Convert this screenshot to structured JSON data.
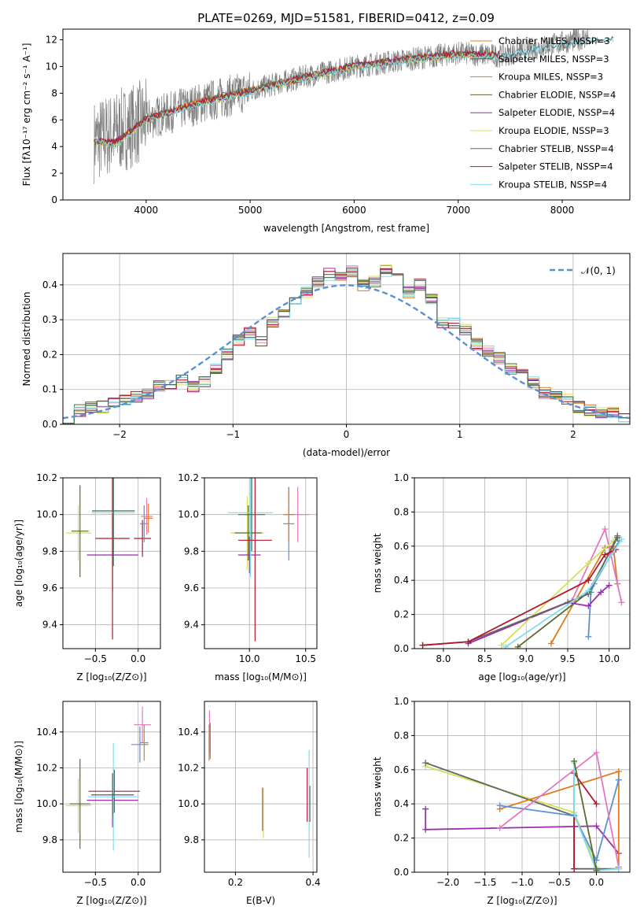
{
  "figure": {
    "title": "PLATE=0269, MJD=51581, FIBERID=0412, z=0.09"
  },
  "colors": {
    "c1": "#446a58",
    "c2": "#e377c2",
    "c3": "#e07b1a",
    "c4": "#556b2f",
    "c5": "#9a2db0",
    "c6": "#d4e157",
    "c7": "#666666",
    "c8": "#b2182b",
    "c9": "#80deea",
    "data": "#808080",
    "norm": "#5b8fd6",
    "grid": "#b0b0b0",
    "zline": "#6f94d8"
  },
  "chart_data": [
    {
      "id": "spectrum",
      "type": "line",
      "xlabel": "wavelength [Angstrom, rest frame]",
      "ylabel": "Flux [f_λ10^{-17} erg cm^{-2} s^{-1} A^{-1}]",
      "xlim": [
        3200,
        8650
      ],
      "ylim": [
        0,
        12.8
      ],
      "grid": false,
      "legend": "top-right",
      "xticks": [
        4000,
        5000,
        6000,
        7000,
        8000
      ],
      "yticks": [
        0,
        2,
        4,
        6,
        8,
        10,
        12
      ],
      "data_series": {
        "name": "",
        "x": [
          3500,
          4000,
          4500,
          5000,
          5500,
          6000,
          6500,
          7000,
          7400,
          8250
        ],
        "y": [
          4.4,
          6.0,
          7.2,
          8.2,
          9.2,
          10.0,
          10.5,
          11.0,
          10.8,
          12.2
        ]
      },
      "series": [
        {
          "name": "Chabrier MILES, N_SSP=3",
          "x": [
            3500,
            3700,
            4000,
            4500,
            5000,
            5500,
            6000,
            6500,
            7000,
            7400
          ],
          "y": [
            4.4,
            4.3,
            6.0,
            7.3,
            8.2,
            9.1,
            10.0,
            10.5,
            10.9,
            10.8
          ]
        },
        {
          "name": "Salpeter MILES, N_SSP=3",
          "x": [
            3500,
            3700,
            4000,
            4500,
            5000,
            5500,
            6000,
            6500,
            7000,
            7400
          ],
          "y": [
            4.4,
            4.2,
            6.1,
            7.4,
            8.3,
            9.2,
            10.1,
            10.6,
            11.0,
            10.9
          ]
        },
        {
          "name": "Kroupa MILES, N_SSP=3",
          "x": [
            3500,
            3700,
            4000,
            4500,
            5000,
            5500,
            6000,
            6500,
            7000,
            7400
          ],
          "y": [
            4.3,
            4.2,
            6.0,
            7.3,
            8.2,
            9.1,
            10.0,
            10.5,
            10.9,
            10.8
          ]
        },
        {
          "name": "Chabrier ELODIE, N_SSP=4",
          "x": [
            3500,
            3700,
            4000,
            4500,
            5000,
            5500,
            6000,
            6500,
            7000,
            7400
          ],
          "y": [
            4.5,
            4.3,
            6.0,
            7.2,
            8.2,
            9.1,
            10.0,
            10.5,
            10.9,
            10.8
          ]
        },
        {
          "name": "Salpeter ELODIE, N_SSP=4",
          "x": [
            3500,
            3700,
            4000,
            4500,
            5000,
            5500,
            6000,
            6500,
            7000,
            7400
          ],
          "y": [
            4.4,
            4.3,
            6.0,
            7.2,
            8.1,
            9.1,
            10.0,
            10.5,
            10.9,
            10.8
          ]
        },
        {
          "name": "Kroupa ELODIE, N_SSP=3",
          "x": [
            3500,
            3700,
            4000,
            4500,
            5000,
            5500,
            6000,
            6500,
            7000,
            7400
          ],
          "y": [
            4.4,
            4.2,
            5.9,
            7.2,
            8.1,
            9.0,
            9.9,
            10.4,
            10.8,
            10.7
          ]
        },
        {
          "name": "Chabrier STELIB, N_SSP=4",
          "x": [
            3500,
            3700,
            4000,
            4500,
            5000,
            5500,
            6000,
            6500,
            7000,
            7400,
            8000,
            8500
          ],
          "y": [
            4.4,
            4.3,
            6.0,
            7.2,
            8.2,
            9.1,
            10.0,
            10.5,
            10.9,
            10.8,
            11.6,
            12.0
          ]
        },
        {
          "name": "Salpeter STELIB, N_SSP=4",
          "x": [
            3500,
            3700,
            4000,
            4500,
            5000,
            5500,
            6000,
            6500,
            7000,
            7400
          ],
          "y": [
            4.4,
            4.3,
            6.1,
            7.3,
            8.2,
            9.2,
            10.1,
            10.6,
            11.0,
            10.9
          ]
        },
        {
          "name": "Kroupa STELIB, N_SSP=4",
          "x": [
            3500,
            3700,
            4000,
            4500,
            5000,
            5500,
            6000,
            6500,
            7000,
            7400,
            8000,
            8500
          ],
          "y": [
            4.5,
            4.0,
            5.9,
            7.1,
            8.0,
            9.0,
            9.9,
            10.4,
            10.8,
            10.7,
            11.7,
            12.1
          ]
        }
      ]
    },
    {
      "id": "residuals",
      "type": "line",
      "xlabel": "(data-model)/error",
      "ylabel": "Normed distribution",
      "xlim": [
        -2.5,
        2.5
      ],
      "ylim": [
        0,
        0.49
      ],
      "grid": true,
      "legend": "top-right",
      "xticks": [
        -2,
        -1,
        0,
        1,
        2
      ],
      "yticks": [
        0.0,
        0.1,
        0.2,
        0.3,
        0.4
      ],
      "bin_edges": [
        -2.5,
        -2.4,
        -2.3,
        -2.2,
        -2.1,
        -2.0,
        -1.9,
        -1.8,
        -1.7,
        -1.6,
        -1.5,
        -1.4,
        -1.3,
        -1.2,
        -1.1,
        -1.0,
        -0.9,
        -0.8,
        -0.7,
        -0.6,
        -0.5,
        -0.4,
        -0.3,
        -0.2,
        -0.1,
        0.0,
        0.1,
        0.2,
        0.3,
        0.4,
        0.5,
        0.6,
        0.7,
        0.8,
        0.9,
        1.0,
        1.1,
        1.2,
        1.3,
        1.4,
        1.5,
        1.6,
        1.7,
        1.8,
        1.9,
        2.0,
        2.1,
        2.2,
        2.3,
        2.4,
        2.5
      ],
      "hist_values": [
        0.02,
        0.04,
        0.05,
        0.05,
        0.06,
        0.07,
        0.08,
        0.09,
        0.11,
        0.11,
        0.13,
        0.11,
        0.12,
        0.16,
        0.2,
        0.24,
        0.26,
        0.24,
        0.29,
        0.32,
        0.36,
        0.38,
        0.41,
        0.43,
        0.42,
        0.44,
        0.4,
        0.41,
        0.44,
        0.42,
        0.38,
        0.4,
        0.36,
        0.29,
        0.29,
        0.27,
        0.23,
        0.21,
        0.19,
        0.16,
        0.15,
        0.12,
        0.09,
        0.08,
        0.07,
        0.05,
        0.04,
        0.03,
        0.03,
        0.02
      ],
      "normal_label": "N(0,1)"
    },
    {
      "id": "age_vs_Z",
      "type": "scatter",
      "xlabel": "Z [log10(Z/Z⊙)]",
      "ylabel": "age [log10(age/yr)]",
      "xlim": [
        -0.88,
        0.26
      ],
      "ylim": [
        9.27,
        10.2
      ],
      "grid": true,
      "xticks": [
        -0.5,
        0.0
      ],
      "yticks": [
        9.4,
        9.6,
        9.8,
        10.0,
        10.2
      ],
      "points": [
        {
          "x": -0.7,
          "y": 9.9,
          "xerr": 0.15,
          "yerr": 0.15,
          "c": "c6"
        },
        {
          "x": -0.68,
          "y": 9.91,
          "xerr": 0.1,
          "yerr": 0.25,
          "c": "c4"
        },
        {
          "x": -0.3,
          "y": 9.78,
          "xerr": 0.3,
          "yerr": 0.2,
          "c": "c5"
        },
        {
          "x": -0.3,
          "y": 9.87,
          "xerr": 0.2,
          "yerr": 0.55,
          "c": "c8"
        },
        {
          "x": -0.29,
          "y": 10.01,
          "xerr": 0.25,
          "yerr": 0.2,
          "c": "c9"
        },
        {
          "x": -0.29,
          "y": 10.02,
          "xerr": 0.25,
          "yerr": 0.3,
          "c": "c1"
        },
        {
          "x": 0.05,
          "y": 9.87,
          "xerr": 0.1,
          "yerr": 0.1,
          "c": "c8"
        },
        {
          "x": 0.07,
          "y": 9.95,
          "xerr": 0.05,
          "yerr": 0.1,
          "c": "norm"
        },
        {
          "x": 0.1,
          "y": 9.99,
          "xerr": 0.07,
          "yerr": 0.1,
          "c": "c2"
        },
        {
          "x": 0.12,
          "y": 9.98,
          "xerr": 0.05,
          "yerr": 0.08,
          "c": "c3"
        }
      ]
    },
    {
      "id": "age_vs_mass",
      "type": "scatter",
      "xlabel": "mass [log10(M/M⊙)]",
      "ylabel": "",
      "xlim": [
        9.6,
        10.6
      ],
      "ylim": [
        9.27,
        10.2
      ],
      "grid": true,
      "xticks": [
        10.0,
        10.5
      ],
      "yticks": [
        9.4,
        9.6,
        9.8,
        10.0,
        10.2
      ],
      "points": [
        {
          "x": 9.98,
          "y": 9.9,
          "xerr": 0.15,
          "yerr": 0.2,
          "c": "c6"
        },
        {
          "x": 9.99,
          "y": 9.9,
          "xerr": 0.12,
          "yerr": 0.15,
          "c": "c4"
        },
        {
          "x": 10.0,
          "y": 9.78,
          "xerr": 0.1,
          "yerr": 0.1,
          "c": "c5"
        },
        {
          "x": 10.01,
          "y": 10.01,
          "xerr": 0.2,
          "yerr": 0.35,
          "c": "c9"
        },
        {
          "x": 10.02,
          "y": 10.0,
          "xerr": 0.12,
          "yerr": 0.2,
          "c": "c1"
        },
        {
          "x": 10.05,
          "y": 9.86,
          "xerr": 0.15,
          "yerr": 0.55,
          "c": "c8"
        },
        {
          "x": 10.35,
          "y": 9.95,
          "xerr": 0.05,
          "yerr": 0.2,
          "c": "norm"
        },
        {
          "x": 10.43,
          "y": 10.0,
          "xerr": 0.1,
          "yerr": 0.15,
          "c": "c2"
        },
        {
          "x": 10.35,
          "y": 10.0,
          "xerr": 0.05,
          "yerr": 0.15,
          "c": "c3"
        }
      ]
    },
    {
      "id": "weight_vs_age",
      "type": "line",
      "xlabel": "age [log10(age/yr)]",
      "ylabel": "mass weight",
      "xlim": [
        7.65,
        10.25
      ],
      "ylim": [
        0,
        1.0
      ],
      "grid": true,
      "xticks": [
        8.0,
        8.5,
        9.0,
        9.5,
        10.0
      ],
      "yticks": [
        0.0,
        0.2,
        0.4,
        0.6,
        0.8,
        1.0
      ],
      "series": [
        {
          "name": "",
          "c": "c3",
          "x": [
            9.3,
            9.95,
            10.05,
            10.1
          ],
          "y": [
            0.03,
            0.59,
            0.6,
            0.38
          ]
        },
        {
          "name": "",
          "c": "norm",
          "x": [
            9.75,
            9.78,
            9.82,
            10.12
          ],
          "y": [
            0.07,
            0.33,
            0.38,
            0.63
          ]
        },
        {
          "name": "",
          "c": "c2",
          "x": [
            9.55,
            9.95,
            10.02,
            10.15
          ],
          "y": [
            0.28,
            0.7,
            0.55,
            0.27
          ]
        },
        {
          "name": "",
          "c": "c4",
          "x": [
            8.9,
            9.75,
            10.1
          ],
          "y": [
            0.01,
            0.33,
            0.65
          ]
        },
        {
          "name": "",
          "c": "c5",
          "x": [
            8.3,
            9.5,
            9.75,
            9.9,
            10.0
          ],
          "y": [
            0.03,
            0.27,
            0.25,
            0.33,
            0.37
          ]
        },
        {
          "name": "",
          "c": "c6",
          "x": [
            8.7,
            9.75,
            10.05
          ],
          "y": [
            0.02,
            0.5,
            0.63
          ]
        },
        {
          "name": "",
          "c": "c7",
          "x": [
            7.75,
            8.3,
            9.75,
            10.1
          ],
          "y": [
            0.02,
            0.04,
            0.32,
            0.66
          ]
        },
        {
          "name": "",
          "c": "c8",
          "x": [
            7.75,
            8.3,
            9.75,
            9.95,
            10.08
          ],
          "y": [
            0.02,
            0.04,
            0.4,
            0.55,
            0.58
          ]
        },
        {
          "name": "",
          "c": "c9",
          "x": [
            8.75,
            9.75,
            10.15
          ],
          "y": [
            0.01,
            0.34,
            0.64
          ]
        }
      ]
    },
    {
      "id": "mass_vs_Z",
      "type": "scatter",
      "xlabel": "Z [log10(Z/Z⊙)]",
      "ylabel": "mass [log10(M/M⊙)]",
      "xlim": [
        -0.88,
        0.26
      ],
      "ylim": [
        9.62,
        10.57
      ],
      "grid": true,
      "xticks": [
        -0.5,
        0.0
      ],
      "yticks": [
        9.8,
        10.0,
        10.2,
        10.4
      ],
      "points": [
        {
          "x": -0.7,
          "y": 9.99,
          "xerr": 0.15,
          "yerr": 0.15,
          "c": "c6"
        },
        {
          "x": -0.68,
          "y": 10.0,
          "xerr": 0.12,
          "yerr": 0.25,
          "c": "c4"
        },
        {
          "x": -0.3,
          "y": 10.02,
          "xerr": 0.3,
          "yerr": 0.15,
          "c": "c5"
        },
        {
          "x": -0.28,
          "y": 10.07,
          "xerr": 0.3,
          "yerr": 0.12,
          "c": "c8"
        },
        {
          "x": -0.29,
          "y": 10.04,
          "xerr": 0.3,
          "yerr": 0.3,
          "c": "c9"
        },
        {
          "x": -0.3,
          "y": 10.05,
          "xerr": 0.25,
          "yerr": 0.12,
          "c": "c1"
        },
        {
          "x": 0.02,
          "y": 10.33,
          "xerr": 0.1,
          "yerr": 0.1,
          "c": "norm"
        },
        {
          "x": 0.05,
          "y": 10.44,
          "xerr": 0.1,
          "yerr": 0.1,
          "c": "c2"
        },
        {
          "x": 0.07,
          "y": 10.34,
          "xerr": 0.05,
          "yerr": 0.1,
          "c": "c3"
        }
      ]
    },
    {
      "id": "mass_vs_ebv",
      "type": "scatter",
      "xlabel": "E(B-V)",
      "ylabel": "",
      "xlim": [
        0.12,
        0.41
      ],
      "ylim": [
        9.62,
        10.57
      ],
      "grid": true,
      "xticks": [
        0.2,
        0.4
      ],
      "yticks": [
        9.8,
        10.0,
        10.2,
        10.4
      ],
      "points": [
        {
          "x": 0.133,
          "y": 10.4,
          "xerr": 0.0,
          "yerr": 0.12,
          "c": "c2"
        },
        {
          "x": 0.135,
          "y": 10.35,
          "xerr": 0.0,
          "yerr": 0.1,
          "c": "norm"
        },
        {
          "x": 0.132,
          "y": 10.34,
          "xerr": 0.0,
          "yerr": 0.1,
          "c": "c3"
        },
        {
          "x": 0.27,
          "y": 9.97,
          "xerr": 0.0,
          "yerr": 0.12,
          "c": "c5"
        },
        {
          "x": 0.272,
          "y": 9.95,
          "xerr": 0.0,
          "yerr": 0.14,
          "c": "c6"
        },
        {
          "x": 0.385,
          "y": 10.05,
          "xerr": 0.0,
          "yerr": 0.15,
          "c": "c8"
        },
        {
          "x": 0.39,
          "y": 10.0,
          "xerr": 0.0,
          "yerr": 0.3,
          "c": "c9"
        },
        {
          "x": 0.392,
          "y": 10.0,
          "xerr": 0.0,
          "yerr": 0.1,
          "c": "c7"
        }
      ]
    },
    {
      "id": "weight_vs_Z",
      "type": "line",
      "xlabel": "Z [log10(Z/Z⊙)]",
      "ylabel": "mass weight",
      "xlim": [
        -2.45,
        0.45
      ],
      "ylim": [
        0,
        1.0
      ],
      "grid": true,
      "xticks": [
        -2.0,
        -1.5,
        -1.0,
        -0.5,
        0.0
      ],
      "yticks": [
        0.0,
        0.2,
        0.4,
        0.6,
        0.8,
        1.0
      ],
      "series": [
        {
          "name": "",
          "c": "c5",
          "x": [
            -2.3,
            -2.3,
            0.0,
            0.3
          ],
          "y": [
            0.37,
            0.25,
            0.27,
            0.11
          ]
        },
        {
          "name": "",
          "c": "c6",
          "x": [
            -2.3,
            -0.3,
            0.0
          ],
          "y": [
            0.62,
            0.35,
            0.03
          ]
        },
        {
          "name": "",
          "c": "c7",
          "x": [
            -2.3,
            -0.3,
            -0.3,
            0.0,
            0.3
          ],
          "y": [
            0.64,
            0.33,
            0.02,
            0.02,
            0.02
          ]
        },
        {
          "name": "",
          "c": "c3",
          "x": [
            -1.3,
            0.3,
            0.3
          ],
          "y": [
            0.37,
            0.59,
            0.03
          ]
        },
        {
          "name": "",
          "c": "norm",
          "x": [
            -1.3,
            -0.3,
            0.0,
            0.3
          ],
          "y": [
            0.39,
            0.33,
            0.07,
            0.54
          ]
        },
        {
          "name": "",
          "c": "c2",
          "x": [
            -1.3,
            0.0,
            0.3
          ],
          "y": [
            0.26,
            0.7,
            0.03
          ]
        },
        {
          "name": "",
          "c": "c8",
          "x": [
            -0.3,
            -0.3,
            0.0
          ],
          "y": [
            0.02,
            0.58,
            0.4
          ]
        },
        {
          "name": "",
          "c": "c9",
          "x": [
            -0.3,
            -0.3,
            0.0,
            0.3
          ],
          "y": [
            0.64,
            0.34,
            0.01,
            0.02
          ]
        },
        {
          "name": "",
          "c": "c4",
          "x": [
            -0.3,
            0.0
          ],
          "y": [
            0.65,
            0.01
          ]
        }
      ]
    }
  ]
}
